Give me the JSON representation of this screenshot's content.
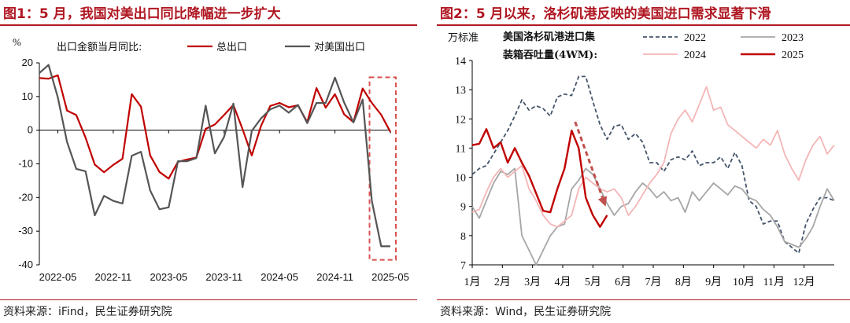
{
  "chart1": {
    "title": "图1：5 月，我国对美出口同比降幅进一步扩大",
    "source": "资料来源：iFind，民生证券研究院",
    "chart_data": {
      "type": "line",
      "ylabel": "%",
      "legend_title": "出口金额当月同比:",
      "ylim": [
        -40,
        20
      ],
      "yticks": [
        20,
        10,
        0,
        -10,
        -20,
        -30,
        -40
      ],
      "xtick_labels": [
        "2022-05",
        "2022-11",
        "2023-05",
        "2023-11",
        "2024-05",
        "2024-11",
        "2025-05"
      ],
      "x": [
        "2022-03",
        "2022-04",
        "2022-05",
        "2022-06",
        "2022-07",
        "2022-08",
        "2022-09",
        "2022-10",
        "2022-11",
        "2022-12",
        "2023-01",
        "2023-02",
        "2023-03",
        "2023-04",
        "2023-05",
        "2023-06",
        "2023-07",
        "2023-08",
        "2023-09",
        "2023-10",
        "2023-11",
        "2023-12",
        "2024-01",
        "2024-02",
        "2024-03",
        "2024-04",
        "2024-05",
        "2024-06",
        "2024-07",
        "2024-08",
        "2024-09",
        "2024-10",
        "2024-11",
        "2024-12",
        "2025-01",
        "2025-02",
        "2025-03",
        "2025-04",
        "2025-05"
      ],
      "series": [
        {
          "name": "总出口",
          "color": "#c00000",
          "values": [
            15.5,
            15.3,
            16.3,
            5.8,
            4.5,
            -2.2,
            -10.2,
            -12.5,
            -10.3,
            -8.5,
            10.7,
            7,
            -7.5,
            -12.4,
            -14.4,
            -9.4,
            -8.7,
            -8.1,
            0.4,
            1.7,
            4.5,
            7.5,
            0.3,
            -7.5,
            1.3,
            7.2,
            8.1,
            6.8,
            7.4,
            2.4,
            12.5,
            6.7,
            10.7,
            4.7,
            2.4,
            12.4,
            8.1,
            4.6,
            -0.5
          ]
        },
        {
          "name": "对美国出口",
          "color": "#555555",
          "values": [
            17,
            19.4,
            9.7,
            -3.5,
            -11.5,
            -12.2,
            -25.3,
            -19.5,
            -21,
            -21.8,
            -7.6,
            -6.4,
            -17.9,
            -23.5,
            -22.9,
            -9.2,
            -9.2,
            -8.3,
            7.3,
            -6.9,
            -2,
            7.9,
            -16.9,
            -0.2,
            3.5,
            6.2,
            7.3,
            5.2,
            7.5,
            2.1,
            8.1,
            8.1,
            15.6,
            8.2,
            2.3,
            9.1,
            -21.1,
            -34.5,
            -34.5
          ]
        }
      ],
      "highlight_range": [
        "2025-03",
        "2025-05"
      ]
    }
  },
  "chart2": {
    "title": "图2：5 月以来，洛杉矶港反映的美国进口需求显著下滑",
    "source": "资料来源：Wind，民生证券研究院",
    "chart_data": {
      "type": "line",
      "ylabel": "万标准",
      "caption_line1": "美国洛杉矶港进口集",
      "caption_line2": "装箱吞吐量(4WM):",
      "ylim": [
        7,
        14
      ],
      "yticks": [
        14,
        13,
        12,
        11,
        10,
        9,
        8,
        7
      ],
      "xtick_labels": [
        "1月",
        "2月",
        "3月",
        "4月",
        "5月",
        "6月",
        "7月",
        "8月",
        "9月",
        "10月",
        "11月",
        "12月"
      ],
      "x_unit": "week",
      "series": [
        {
          "name": "2022",
          "color": "#44546a",
          "style": "dashed",
          "values": [
            10.1,
            10.3,
            10.4,
            10.8,
            11.2,
            11.6,
            12.1,
            12.65,
            12.3,
            12.45,
            12.35,
            12.1,
            12.75,
            12.85,
            12.8,
            13.45,
            13.45,
            12.6,
            11.8,
            11.3,
            11.75,
            11.8,
            11.3,
            11.5,
            11.2,
            10.5,
            10.5,
            10.2,
            10.6,
            10.7,
            10.6,
            10.9,
            10.4,
            10.5,
            10.5,
            10.7,
            10.3,
            10.85,
            10.4,
            9.2,
            9,
            8.4,
            8.5,
            8.5,
            7.8,
            7.6,
            7.4,
            8.4,
            8.9,
            9.3,
            9.3,
            9.2
          ]
        },
        {
          "name": "2023",
          "color": "#a6a6a6",
          "style": "solid",
          "values": [
            9,
            8.6,
            9.2,
            9.8,
            10.2,
            10.1,
            10.3,
            8,
            7.5,
            7,
            7.5,
            8,
            8.3,
            8.4,
            9.6,
            9.9,
            10.3,
            10.1,
            9.6,
            9.1,
            8.7,
            9,
            9.1,
            9.5,
            9.8,
            9.6,
            9.3,
            9.5,
            9.2,
            9.3,
            8.8,
            9.5,
            9.2,
            9.5,
            9.8,
            9.6,
            9.4,
            9.7,
            9.6,
            9.3,
            9.2,
            8.9,
            8.7,
            8.3,
            7.8,
            7.7,
            7.6,
            7.9,
            8.3,
            9,
            9.6,
            9.2
          ]
        },
        {
          "name": "2024",
          "color": "#f4b6b6",
          "style": "solid",
          "values": [
            8.8,
            8.9,
            9.5,
            10,
            10.3,
            10,
            10.2,
            10.4,
            9.6,
            9.2,
            8.7,
            8.4,
            8.3,
            8.5,
            8.7,
            9.6,
            10,
            9.8,
            9.6,
            9.5,
            9.6,
            9.3,
            8.7,
            9,
            9.4,
            9.8,
            10.1,
            10.5,
            11.5,
            12,
            12.3,
            11.9,
            12.5,
            13.1,
            12.3,
            12.4,
            11.8,
            11.6,
            11.4,
            11.2,
            11,
            11.3,
            11.1,
            11.6,
            10.8,
            10.3,
            9.9,
            10.6,
            11.1,
            11.4,
            10.8,
            11.1
          ]
        },
        {
          "name": "2025",
          "color": "#c00000",
          "style": "solid",
          "values": [
            11.1,
            11.15,
            11.65,
            11,
            11.2,
            10.5,
            11,
            10.5,
            10.05,
            9.45,
            8.85,
            8.8,
            9.6,
            10.3,
            11.6,
            11,
            9.3,
            8.7,
            8.3,
            8.7
          ]
        }
      ],
      "annotation": {
        "type": "arrow",
        "color": "#c0504d"
      }
    }
  }
}
